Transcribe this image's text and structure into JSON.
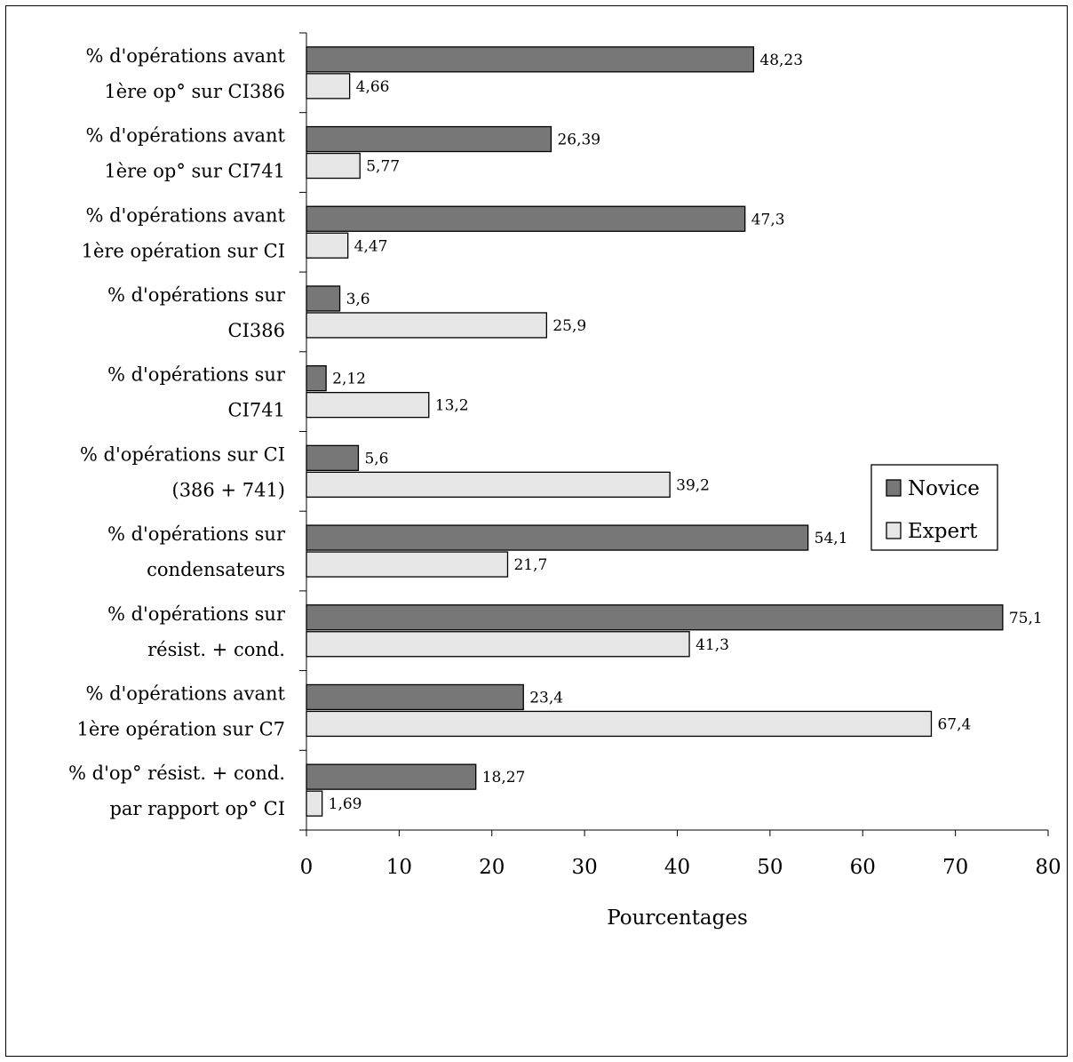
{
  "chart_data": {
    "type": "bar",
    "orientation": "horizontal",
    "categories": [
      [
        "% d'opérations avant",
        "1ère op° sur CI386"
      ],
      [
        "% d'opérations avant",
        "1ère op° sur CI741"
      ],
      [
        "% d'opérations avant",
        "1ère opération sur CI"
      ],
      [
        "% d'opérations sur",
        "CI386"
      ],
      [
        "% d'opérations sur",
        "CI741"
      ],
      [
        "% d'opérations sur CI",
        "(386 + 741)"
      ],
      [
        "% d'opérations sur",
        "condensateurs"
      ],
      [
        "% d'opérations sur",
        "résist. + cond."
      ],
      [
        "% d'opérations avant",
        "1ère opération sur C7"
      ],
      [
        "% d'op° résist. + cond.",
        "par rapport op° CI"
      ]
    ],
    "series": [
      {
        "name": "Novice",
        "color": "#777777",
        "values": [
          48.23,
          26.39,
          47.3,
          3.6,
          2.12,
          5.6,
          54.1,
          75.1,
          23.4,
          18.27
        ],
        "labels": [
          "48,23",
          "26,39",
          "47,3",
          "3,6",
          "2,12",
          "5,6",
          "54,1",
          "75,1",
          "23,4",
          "18,27"
        ]
      },
      {
        "name": "Expert",
        "color": "#e6e6e6",
        "values": [
          4.66,
          5.77,
          4.47,
          25.9,
          13.2,
          39.2,
          21.7,
          41.3,
          67.4,
          1.69
        ],
        "labels": [
          "4,66",
          "5,77",
          "4,47",
          "25,9",
          "13,2",
          "39,2",
          "21,7",
          "41,3",
          "67,4",
          "1,69"
        ]
      }
    ],
    "xlabel": "Pourcentages",
    "xlim": [
      0,
      80
    ],
    "xticks": [
      0,
      10,
      20,
      30,
      40,
      50,
      60,
      70,
      80
    ],
    "grid": false,
    "legend_position": "right"
  }
}
